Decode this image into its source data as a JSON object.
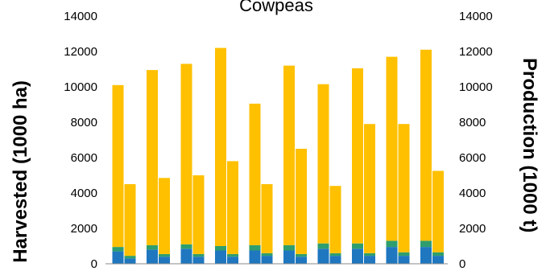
{
  "chart_data": {
    "type": "bar",
    "title": "Cowpeas",
    "ylabel_left": "Harvested (1000 ha)",
    "ylabel_right": "Production (1000 t)",
    "ylim_left": [
      0,
      14000
    ],
    "ylim_right": [
      0,
      14000
    ],
    "yticks_left": [
      "0",
      "2000",
      "4000",
      "6000",
      "8000",
      "10000",
      "12000",
      "14000"
    ],
    "yticks_right": [
      "0",
      "2000",
      "4000",
      "6000",
      "8000",
      "10000",
      "12000",
      "14000"
    ],
    "grid": false,
    "stack_colors": [
      "#1f77c0",
      "#2e9e6e",
      "#ffc000"
    ],
    "groups": [
      {
        "harvested": [
          700,
          250,
          9150
        ],
        "production": [
          300,
          150,
          4050
        ]
      },
      {
        "harvested": [
          800,
          250,
          9900
        ],
        "production": [
          400,
          150,
          4300
        ]
      },
      {
        "harvested": [
          850,
          250,
          10200
        ],
        "production": [
          400,
          150,
          4450
        ]
      },
      {
        "harvested": [
          750,
          250,
          11200
        ],
        "production": [
          400,
          150,
          5250
        ]
      },
      {
        "harvested": [
          750,
          300,
          8000
        ],
        "production": [
          450,
          150,
          3900
        ]
      },
      {
        "harvested": [
          750,
          300,
          10150
        ],
        "production": [
          400,
          150,
          5950
        ]
      },
      {
        "harvested": [
          850,
          300,
          9000
        ],
        "production": [
          450,
          150,
          3800
        ]
      },
      {
        "harvested": [
          850,
          300,
          9900
        ],
        "production": [
          450,
          150,
          7300
        ]
      },
      {
        "harvested": [
          950,
          350,
          10400
        ],
        "production": [
          450,
          200,
          7250
        ]
      },
      {
        "harvested": [
          950,
          350,
          10800
        ],
        "production": [
          450,
          200,
          4600
        ]
      }
    ]
  }
}
